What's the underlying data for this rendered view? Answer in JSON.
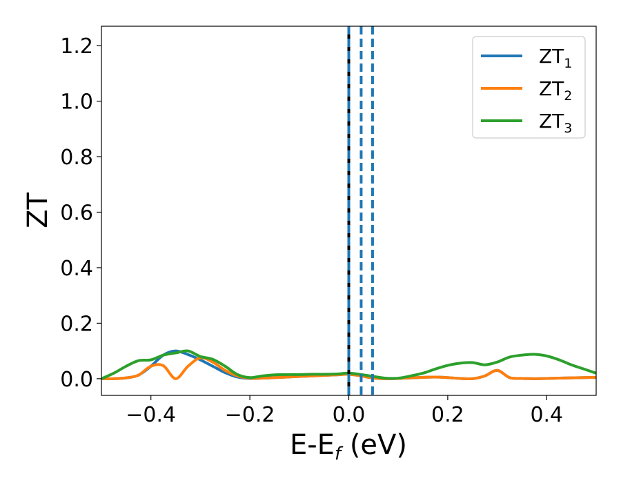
{
  "chart_data": {
    "type": "line",
    "xlabel": {
      "main": "E-E",
      "sub": "f",
      "unit": " (eV)"
    },
    "ylabel": "ZT",
    "xlim": [
      -0.5,
      0.5
    ],
    "ylim": [
      -0.06,
      1.27
    ],
    "x_ticks": [
      -0.4,
      -0.2,
      0.0,
      0.2,
      0.4
    ],
    "x_tick_labels": [
      "−0.4",
      "−0.2",
      "0.0",
      "0.2",
      "0.4"
    ],
    "y_ticks": [
      0.0,
      0.2,
      0.4,
      0.6,
      0.8,
      1.0,
      1.2
    ],
    "y_tick_labels": [
      "0.0",
      "0.2",
      "0.4",
      "0.6",
      "0.8",
      "1.0",
      "1.2"
    ],
    "grid": false,
    "legend_position": "top-right",
    "fermi_line": {
      "x": 0.0,
      "color": "#000000"
    },
    "dashed_lines": [
      {
        "x": 0.0,
        "color": "#1f77b4"
      },
      {
        "x": 0.025,
        "color": "#1f77b4"
      },
      {
        "x": 0.048,
        "color": "#1f77b4"
      }
    ],
    "x": [
      -0.5,
      -0.475,
      -0.45,
      -0.425,
      -0.4,
      -0.375,
      -0.35,
      -0.325,
      -0.3,
      -0.275,
      -0.25,
      -0.225,
      -0.2,
      -0.175,
      -0.15,
      -0.125,
      -0.1,
      -0.075,
      -0.05,
      -0.025,
      0.0,
      0.025,
      0.05,
      0.075,
      0.1,
      0.125,
      0.15,
      0.175,
      0.2,
      0.225,
      0.25,
      0.275,
      0.3,
      0.325,
      0.35,
      0.375,
      0.4,
      0.425,
      0.45,
      0.475,
      0.5
    ],
    "series": [
      {
        "name": "ZT",
        "name_sub": "1",
        "color": "#1f77b4",
        "values": [
          0.0,
          0.0,
          0.003,
          0.013,
          0.045,
          0.085,
          0.1,
          0.087,
          0.068,
          0.045,
          0.022,
          0.006,
          0.001,
          0.002,
          0.004,
          0.006,
          0.008,
          0.01,
          0.012,
          0.014,
          0.016,
          0.01,
          0.002,
          0.0,
          0.001,
          0.003,
          0.005,
          0.006,
          0.004,
          0.001,
          0.0,
          0.01,
          0.03,
          0.004,
          0.001,
          0.0,
          0.001,
          0.002,
          0.003,
          0.004,
          0.005
        ]
      },
      {
        "name": "ZT",
        "name_sub": "2",
        "color": "#ff7f0e",
        "values": [
          0.0,
          0.0,
          0.003,
          0.013,
          0.045,
          0.047,
          0.0,
          0.045,
          0.075,
          0.06,
          0.03,
          0.01,
          0.002,
          0.002,
          0.004,
          0.006,
          0.008,
          0.01,
          0.012,
          0.014,
          0.016,
          0.01,
          0.002,
          0.0,
          0.001,
          0.003,
          0.005,
          0.006,
          0.004,
          0.001,
          0.0,
          0.01,
          0.03,
          0.004,
          0.001,
          0.0,
          0.001,
          0.002,
          0.003,
          0.004,
          0.005
        ]
      },
      {
        "name": "ZT",
        "name_sub": "3",
        "color": "#2ca02c",
        "values": [
          0.0,
          0.02,
          0.045,
          0.065,
          0.068,
          0.085,
          0.093,
          0.1,
          0.08,
          0.07,
          0.045,
          0.015,
          0.004,
          0.01,
          0.014,
          0.015,
          0.015,
          0.016,
          0.016,
          0.017,
          0.02,
          0.015,
          0.008,
          0.002,
          0.002,
          0.01,
          0.02,
          0.035,
          0.048,
          0.056,
          0.058,
          0.05,
          0.06,
          0.078,
          0.085,
          0.088,
          0.082,
          0.068,
          0.05,
          0.035,
          0.02
        ]
      }
    ]
  }
}
